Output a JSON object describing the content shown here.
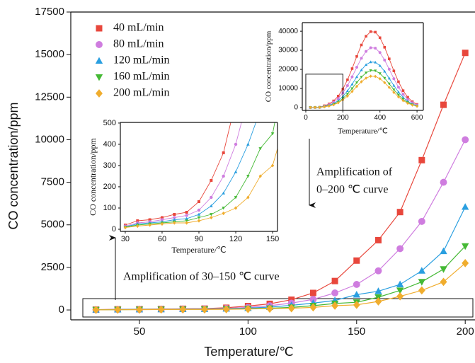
{
  "chart_data": [
    {
      "type": "scatter",
      "xlabel": "Temperature/℃",
      "ylabel": "CO concentration/ppm",
      "x": [
        30,
        40,
        50,
        60,
        70,
        80,
        90,
        100,
        110,
        120,
        130,
        140,
        150,
        160,
        170,
        180,
        190,
        200
      ],
      "xlim": [
        18.4,
        204.5
      ],
      "xticks": [
        50,
        100,
        150,
        200
      ],
      "ylim": [
        -580,
        17500
      ],
      "yticks": [
        0,
        2500,
        5000,
        7500,
        10000,
        12500,
        15000,
        17500
      ],
      "legend": "upper left",
      "series": [
        {
          "name": "40 mL/min",
          "color": "#e8473c",
          "marker": "square",
          "values": [
            20,
            40,
            45,
            55,
            70,
            80,
            130,
            230,
            360,
            600,
            1000,
            1700,
            2900,
            4100,
            5750,
            8800,
            12050,
            15100
          ]
        },
        {
          "name": "80 mL/min",
          "color": "#cf7ddf",
          "marker": "circle",
          "values": [
            15,
            30,
            35,
            45,
            55,
            65,
            90,
            150,
            250,
            400,
            620,
            1000,
            1500,
            2300,
            3600,
            5200,
            7500,
            10000
          ]
        },
        {
          "name": "120 mL/min",
          "color": "#2a9fe0",
          "marker": "triangle-up",
          "values": [
            12,
            25,
            30,
            35,
            45,
            50,
            70,
            110,
            170,
            270,
            400,
            560,
            900,
            1100,
            1500,
            2300,
            3450,
            6050
          ]
        },
        {
          "name": "160 mL/min",
          "color": "#45b935",
          "marker": "triangle-down",
          "values": [
            10,
            20,
            25,
            30,
            35,
            40,
            55,
            70,
            100,
            150,
            250,
            380,
            450,
            750,
            1150,
            1650,
            2400,
            3750
          ]
        },
        {
          "name": "200 mL/min",
          "color": "#f0ad2e",
          "marker": "diamond",
          "values": [
            8,
            15,
            20,
            25,
            30,
            30,
            40,
            55,
            75,
            100,
            150,
            250,
            300,
            500,
            800,
            1150,
            1650,
            2750
          ]
        }
      ],
      "annotations": [
        "Amplification of  30–150 ℃ curve",
        "Amplification of",
        "0–200 ℃ curve"
      ]
    },
    {
      "type": "scatter",
      "xlabel": "Temperature/℃",
      "ylabel": "CO concentration/ppm",
      "xlim": [
        26,
        154
      ],
      "xticks": [
        30,
        60,
        90,
        120,
        150
      ],
      "ylim": [
        -10,
        503
      ],
      "yticks": [
        0,
        100,
        200,
        300,
        400,
        500
      ]
    },
    {
      "type": "scatter",
      "xlabel": "Temperature/℃",
      "ylabel": "CO concentration/ppm",
      "x": [
        25,
        50,
        75,
        100,
        125,
        150,
        175,
        200,
        225,
        250,
        275,
        300,
        325,
        350,
        375,
        400,
        425,
        450,
        475,
        500,
        525,
        550,
        575,
        600
      ],
      "xlim": [
        -19,
        634
      ],
      "xticks": [
        0,
        200,
        400,
        600
      ],
      "ylim": [
        -1500,
        44500
      ],
      "yticks": [
        0,
        10000,
        20000,
        30000,
        40000
      ],
      "series": [
        {
          "name": "40 mL/min",
          "color": "#e8473c",
          "marker": "square",
          "values": [
            40,
            80,
            160,
            940,
            1880,
            3480,
            6000,
            9680,
            14560,
            20400,
            26800,
            32800,
            37360,
            39800,
            39520,
            36600,
            31600,
            25520,
            19200,
            13520,
            8840,
            5400,
            3080,
            1640
          ]
        },
        {
          "name": "80 mL/min",
          "color": "#cf7ddf",
          "marker": "circle",
          "values": [
            30,
            60,
            130,
            740,
            1480,
            2740,
            4730,
            7620,
            11470,
            16070,
            21110,
            25830,
            29420,
            31340,
            31120,
            28820,
            24890,
            20100,
            15120,
            10650,
            6960,
            4250,
            2430,
            1290
          ]
        },
        {
          "name": "120 mL/min",
          "color": "#2a9fe0",
          "marker": "triangle-up",
          "values": [
            20,
            50,
            100,
            560,
            1130,
            2090,
            3600,
            5810,
            8740,
            12240,
            16080,
            19680,
            22420,
            23880,
            23710,
            21960,
            18960,
            15310,
            11520,
            8110,
            5300,
            3240,
            1850,
            980
          ]
        },
        {
          "name": "160 mL/min",
          "color": "#45b935",
          "marker": "triangle-down",
          "values": [
            20,
            40,
            80,
            460,
            920,
            1700,
            2930,
            4720,
            7100,
            9950,
            13070,
            15990,
            18210,
            19400,
            19270,
            17840,
            15410,
            12440,
            9360,
            6590,
            4310,
            2630,
            1500,
            800
          ]
        },
        {
          "name": "200 mL/min",
          "color": "#f0ad2e",
          "marker": "diamond",
          "values": [
            15,
            30,
            65,
            390,
            780,
            1440,
            2480,
            4000,
            6010,
            8420,
            11060,
            13530,
            15410,
            16420,
            16300,
            15100,
            13040,
            10530,
            7920,
            5580,
            3650,
            2230,
            1270,
            680
          ]
        }
      ]
    }
  ]
}
